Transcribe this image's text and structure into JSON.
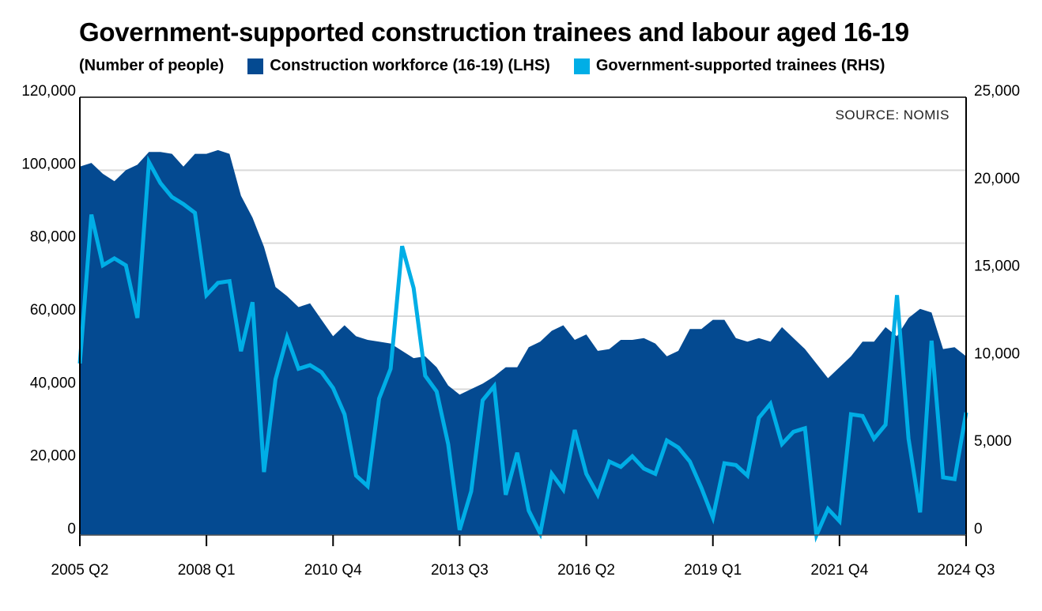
{
  "title": "Government-supported construction trainees and labour aged 16-19",
  "legend": {
    "unit": "(Number of people)",
    "items": [
      {
        "label": "Construction workforce (16-19) (LHS)",
        "color": "#044a91"
      },
      {
        "label": "Government-supported trainees (RHS)",
        "color": "#00aee6"
      }
    ]
  },
  "source": "SOURCE: NOMIS",
  "colors": {
    "area": "#044a91",
    "line": "#00aee6",
    "grid": "#d9d9d9",
    "axis": "#000000"
  },
  "chart_data": {
    "type": "area+line",
    "title": "Government-supported construction trainees and labour aged 16-19",
    "subtitle": "(Number of people)",
    "xlabel": "",
    "ylabel_left": "Construction workforce (16-19)",
    "ylabel_right": "Government-supported trainees",
    "ylim_left": [
      0,
      120000
    ],
    "ylim_right": [
      0,
      25000
    ],
    "yticks_left": [
      "0",
      "20,000",
      "40,000",
      "60,000",
      "80,000",
      "100,000",
      "120,000"
    ],
    "yticks_right": [
      "0",
      "5,000",
      "10,000",
      "15,000",
      "20,000",
      "25,000"
    ],
    "xtick_labels": [
      "2005 Q2",
      "2008 Q1",
      "2010 Q4",
      "2013 Q3",
      "2016 Q2",
      "2019 Q1",
      "2021 Q4",
      "2024 Q3"
    ],
    "grid": "horizontal",
    "legend_position": "top",
    "start_quarter": "2005 Q2",
    "end_quarter": "2024 Q3",
    "series": [
      {
        "name": "Construction workforce (16-19) (LHS)",
        "axis": "left",
        "type": "area",
        "values": [
          101000,
          102000,
          99000,
          97000,
          100000,
          101500,
          105000,
          105000,
          104500,
          101000,
          104500,
          104500,
          105500,
          104500,
          93000,
          87000,
          79000,
          68000,
          65500,
          62500,
          63500,
          59000,
          54500,
          57500,
          54500,
          53500,
          53000,
          52500,
          50500,
          48500,
          49000,
          46000,
          41000,
          38500,
          40000,
          41500,
          43500,
          46000,
          46000,
          51500,
          53000,
          56000,
          57500,
          53500,
          55000,
          50500,
          51000,
          53500,
          53500,
          54000,
          52500,
          49000,
          50500,
          56500,
          56500,
          59000,
          59000,
          54000,
          53000,
          54000,
          53000,
          57000,
          54000,
          51000,
          47000,
          43000,
          46000,
          49000,
          53000,
          53000,
          57000,
          54500,
          59500,
          62000,
          61000,
          51000,
          51500,
          49000
        ]
      },
      {
        "name": "Government-supported trainees (RHS)",
        "axis": "right",
        "type": "line",
        "values": [
          9800,
          18300,
          15400,
          15800,
          15400,
          12400,
          21300,
          20100,
          19300,
          18900,
          18400,
          13700,
          14400,
          14500,
          10500,
          13300,
          3600,
          8900,
          11300,
          9500,
          9700,
          9300,
          8400,
          6900,
          3400,
          2800,
          7800,
          9500,
          16500,
          14100,
          9100,
          8200,
          5200,
          300,
          2500,
          7700,
          8500,
          2300,
          4700,
          1400,
          100,
          3500,
          2600,
          6000,
          3500,
          2300,
          4200,
          3900,
          4500,
          3800,
          3500,
          5400,
          5000,
          4200,
          2700,
          1000,
          4100,
          4000,
          3400,
          6700,
          7500,
          5200,
          5900,
          6100,
          0,
          1500,
          800,
          6900,
          6800,
          5500,
          6300,
          13700,
          5500,
          1300,
          11100,
          3300,
          3200,
          7000
        ]
      }
    ]
  }
}
